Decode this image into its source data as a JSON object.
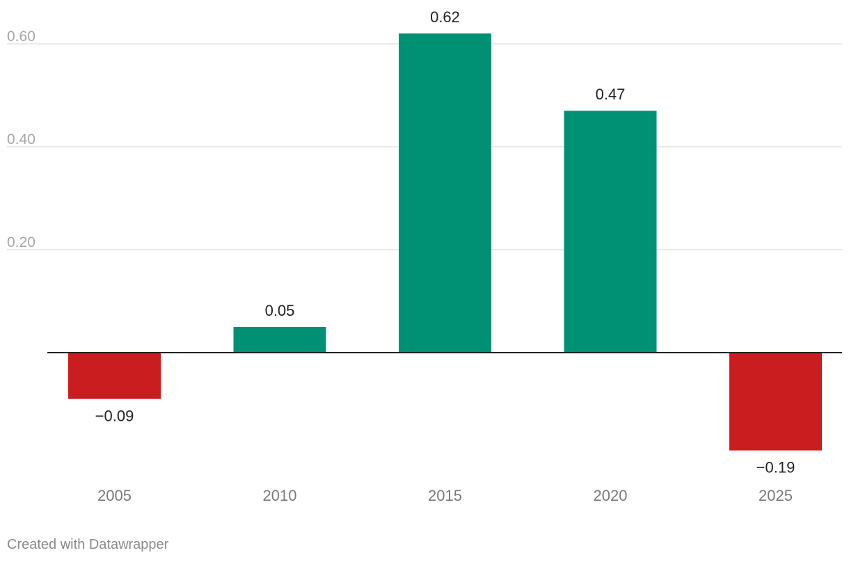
{
  "chart_data": {
    "type": "bar",
    "categories": [
      "2005",
      "2010",
      "2015",
      "2020",
      "2025"
    ],
    "values": [
      -0.09,
      0.05,
      0.62,
      0.47,
      -0.19
    ],
    "value_labels": [
      "−0.09",
      "0.05",
      "0.62",
      "0.47",
      "−0.19"
    ],
    "y_ticks": [
      0.2,
      0.4,
      0.6
    ],
    "y_tick_labels": [
      "0.20",
      "0.40",
      "0.60"
    ],
    "ylim": [
      -0.19,
      0.62
    ],
    "grid": true,
    "title": "",
    "xlabel": "",
    "ylabel": "",
    "colors": {
      "positive": "#009175",
      "negative": "#c91d1f",
      "gridline": "#e2e2e2",
      "baseline": "#222222"
    }
  },
  "footer": {
    "credit": "Created with Datawrapper"
  }
}
